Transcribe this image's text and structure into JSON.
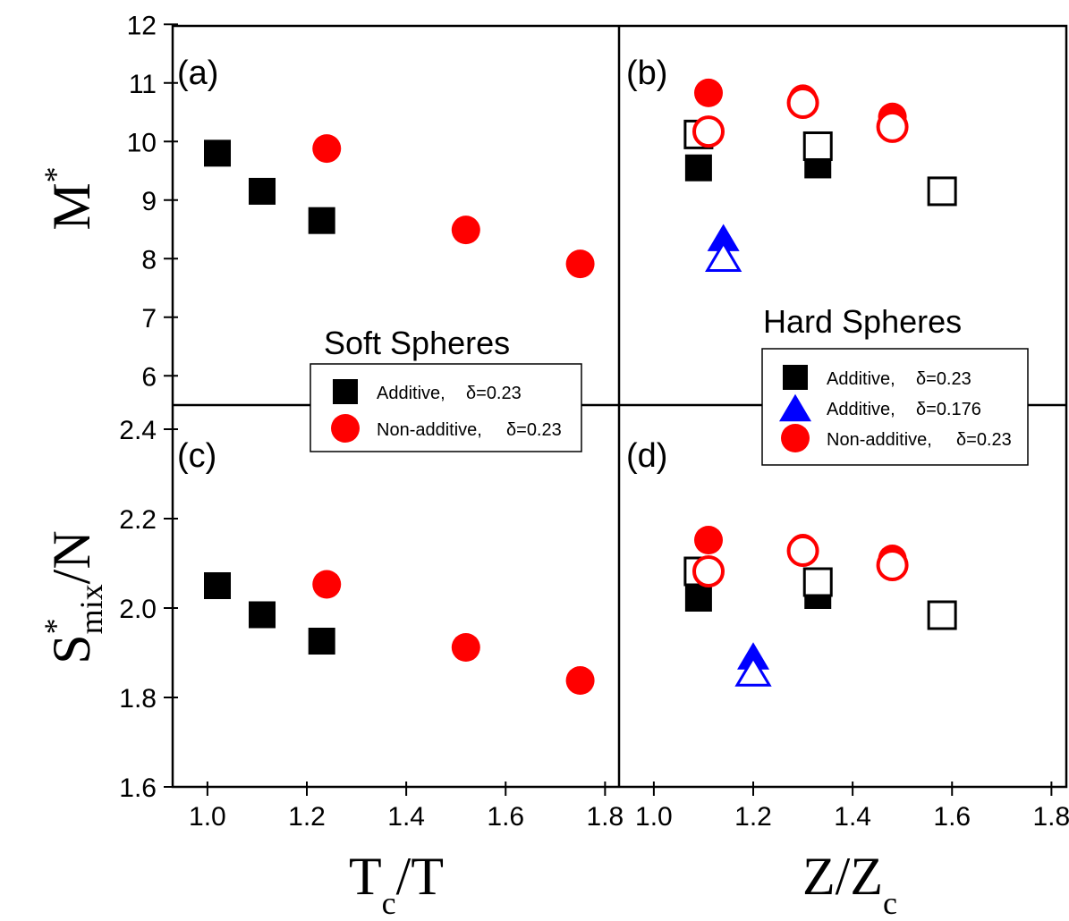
{
  "colors": {
    "black": "#000000",
    "red": "#ff0000",
    "blue": "#0000ff"
  },
  "axis_labels": {
    "top_y": {
      "main": "M",
      "sup": "*"
    },
    "bottom_y": {
      "main": "S",
      "sup": "*",
      "sub": "mix",
      "rest": "/N"
    },
    "left_x": {
      "main": "T",
      "sub": "c",
      "rest": "/T"
    },
    "right_x": {
      "main": "Z/Z",
      "sub": "c"
    }
  },
  "ticks": {
    "top_y": [
      "6",
      "7",
      "8",
      "9",
      "10",
      "11",
      "12"
    ],
    "bottom_y": [
      "1.6",
      "1.8",
      "2.0",
      "2.2",
      "2.4"
    ],
    "left_x": [
      "1.0",
      "1.2",
      "1.4",
      "1.6",
      "1.8"
    ],
    "right_x": [
      "1.0",
      "1.2",
      "1.4",
      "1.6",
      "1.8"
    ]
  },
  "panel_labels": {
    "a": "(a)",
    "b": "(b)",
    "c": "(c)",
    "d": "(d)"
  },
  "soft_title": "Soft Spheres",
  "hard_title": "Hard Spheres",
  "legend_soft": [
    {
      "label": "Additive,",
      "delta": "δ=0.23",
      "marker": "square",
      "color": "#000000"
    },
    {
      "label": "Non-additive,",
      "delta": "δ=0.23",
      "marker": "circle",
      "color": "#ff0000"
    }
  ],
  "legend_hard": [
    {
      "label": "Additive,",
      "delta": "δ=0.23",
      "marker": "square",
      "color": "#000000"
    },
    {
      "label": "Additive,",
      "delta": "δ=0.176",
      "marker": "triangle",
      "color": "#0000ff"
    },
    {
      "label": "Non-additive,",
      "delta": "δ=0.23",
      "marker": "circle",
      "color": "#ff0000"
    }
  ],
  "chart_data": [
    {
      "panel": "a",
      "type": "scatter",
      "xlim": [
        0.93,
        1.83
      ],
      "ylim": [
        5.5,
        12
      ],
      "series": [
        {
          "marker": "square",
          "color": "#000000",
          "filled": true,
          "points": [
            [
              1.02,
              9.8
            ],
            [
              1.11,
              9.15
            ],
            [
              1.23,
              8.65
            ]
          ]
        },
        {
          "marker": "circle",
          "color": "#ff0000",
          "filled": true,
          "points": [
            [
              1.24,
              9.88
            ],
            [
              1.52,
              8.49
            ],
            [
              1.75,
              7.91
            ]
          ]
        }
      ]
    },
    {
      "panel": "b",
      "type": "scatter",
      "xlim": [
        0.93,
        1.83
      ],
      "ylim": [
        5.5,
        12
      ],
      "series": [
        {
          "marker": "square",
          "color": "#000000",
          "filled": true,
          "points": [
            [
              1.09,
              9.55
            ],
            [
              1.33,
              9.6
            ]
          ]
        },
        {
          "marker": "square",
          "color": "#000000",
          "filled": false,
          "points": [
            [
              1.09,
              10.12
            ],
            [
              1.33,
              9.92
            ],
            [
              1.58,
              9.15
            ]
          ]
        },
        {
          "marker": "circle",
          "color": "#ff0000",
          "filled": true,
          "points": [
            [
              1.11,
              10.83
            ],
            [
              1.3,
              10.73
            ],
            [
              1.48,
              10.42
            ]
          ]
        },
        {
          "marker": "circle",
          "color": "#ff0000",
          "filled": false,
          "points": [
            [
              1.11,
              10.17
            ],
            [
              1.3,
              10.66
            ],
            [
              1.48,
              10.25
            ]
          ]
        },
        {
          "marker": "triangle",
          "color": "#0000ff",
          "filled": true,
          "points": [
            [
              1.14,
              8.36
            ]
          ]
        },
        {
          "marker": "triangle",
          "color": "#0000ff",
          "filled": false,
          "points": [
            [
              1.14,
              8.03
            ]
          ]
        }
      ]
    },
    {
      "panel": "c",
      "type": "scatter",
      "xlim": [
        0.93,
        1.83
      ],
      "ylim": [
        1.6,
        2.45
      ],
      "series": [
        {
          "marker": "square",
          "color": "#000000",
          "filled": true,
          "points": [
            [
              1.02,
              2.05
            ],
            [
              1.11,
              1.985
            ],
            [
              1.23,
              1.926
            ]
          ]
        },
        {
          "marker": "circle",
          "color": "#ff0000",
          "filled": true,
          "points": [
            [
              1.24,
              2.053
            ],
            [
              1.52,
              1.912
            ],
            [
              1.75,
              1.838
            ]
          ]
        }
      ]
    },
    {
      "panel": "d",
      "type": "scatter",
      "xlim": [
        0.93,
        1.83
      ],
      "ylim": [
        1.6,
        2.45
      ],
      "series": [
        {
          "marker": "square",
          "color": "#000000",
          "filled": true,
          "points": [
            [
              1.09,
              2.022
            ],
            [
              1.33,
              2.028
            ]
          ]
        },
        {
          "marker": "square",
          "color": "#000000",
          "filled": false,
          "points": [
            [
              1.09,
              2.082
            ],
            [
              1.33,
              2.058
            ],
            [
              1.58,
              1.984
            ]
          ]
        },
        {
          "marker": "circle",
          "color": "#ff0000",
          "filled": true,
          "points": [
            [
              1.11,
              2.152
            ],
            [
              1.3,
              2.134
            ],
            [
              1.48,
              2.11
            ]
          ]
        },
        {
          "marker": "circle",
          "color": "#ff0000",
          "filled": false,
          "points": [
            [
              1.11,
              2.082
            ],
            [
              1.3,
              2.128
            ],
            [
              1.48,
              2.096
            ]
          ]
        },
        {
          "marker": "triangle",
          "color": "#0000ff",
          "filled": true,
          "points": [
            [
              1.2,
              1.893
            ]
          ]
        },
        {
          "marker": "triangle",
          "color": "#0000ff",
          "filled": false,
          "points": [
            [
              1.2,
              1.858
            ]
          ]
        }
      ]
    }
  ]
}
